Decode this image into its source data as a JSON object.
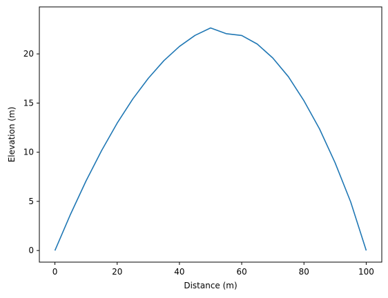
{
  "chart_data": {
    "type": "line",
    "title": "",
    "xlabel": "Distance (m)",
    "ylabel": "Elevation (m)",
    "xlim": [
      -5,
      105
    ],
    "ylim": [
      -1.18,
      24.78
    ],
    "xticks": [
      0,
      20,
      40,
      60,
      80,
      100
    ],
    "yticks": [
      0,
      5,
      10,
      15,
      20
    ],
    "grid": false,
    "legend": "none",
    "series": [
      {
        "color": "#1f77b4",
        "x": [
          0,
          5,
          10,
          15,
          20,
          25,
          30,
          35,
          40,
          45,
          50,
          55,
          60,
          65,
          70,
          75,
          80,
          85,
          90,
          95,
          100
        ],
        "y": [
          0,
          3.68,
          7.08,
          10.17,
          12.96,
          15.41,
          17.52,
          19.31,
          20.76,
          21.88,
          22.64,
          22.06,
          21.87,
          21.0,
          19.58,
          17.68,
          15.23,
          12.37,
          8.93,
          4.95,
          0
        ]
      }
    ]
  }
}
